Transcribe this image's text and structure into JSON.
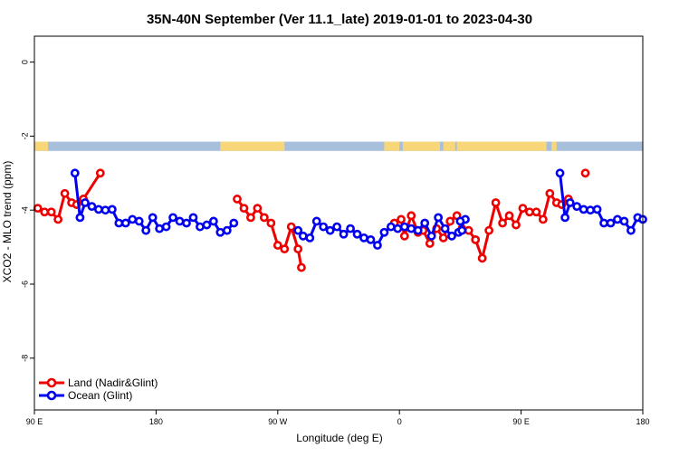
{
  "chart_data": {
    "type": "line",
    "title": "35N-40N September (Ver 11.1_late)   2019-01-01 to 2023-04-30",
    "xlabel": "Longitude (deg E)",
    "ylabel": "XCO2 - MLO trend (ppm)",
    "xlim": [
      90,
      450
    ],
    "ylim": [
      -9.4,
      0.7
    ],
    "x_ticks": [
      {
        "value": 90,
        "label": "90 E"
      },
      {
        "value": 162,
        "label": "180"
      },
      {
        "value": 234,
        "label": "90 W"
      },
      {
        "value": 306,
        "label": "0"
      },
      {
        "value": 378,
        "label": "90 E"
      },
      {
        "value": 450,
        "label": "180"
      }
    ],
    "y_ticks": [
      0,
      -2,
      -4,
      -6,
      -8
    ],
    "grid": false,
    "legend_position": "bottom-left",
    "land_strip": {
      "y_range": [
        -2.4,
        -2.15
      ],
      "ocean_color": "#a8bfdc",
      "land_color": "#f7d77a",
      "land_segms": [
        [
          90,
          98
        ],
        [
          200,
          238
        ],
        [
          297,
          306
        ],
        [
          308,
          330
        ],
        [
          332,
          339
        ],
        [
          340,
          393
        ],
        [
          396,
          399
        ]
      ]
    },
    "series": [
      {
        "name": "Land (Nadir&Glint)",
        "color": "#ee0000",
        "segments": [
          [
            [
              92,
              -3.95
            ],
            [
              96,
              -4.05
            ],
            [
              100,
              -4.05
            ],
            [
              104,
              -4.25
            ],
            [
              108,
              -3.55
            ],
            [
              112,
              -3.8
            ],
            [
              115,
              -3.85
            ],
            [
              119,
              -3.7
            ],
            [
              129,
              -3.0
            ]
          ],
          [
            [
              210,
              -3.7
            ],
            [
              214,
              -3.95
            ],
            [
              218,
              -4.2
            ],
            [
              222,
              -3.95
            ],
            [
              226,
              -4.2
            ],
            [
              230,
              -4.35
            ],
            [
              234,
              -4.95
            ],
            [
              238,
              -5.05
            ],
            [
              242,
              -4.45
            ],
            [
              246,
              -5.05
            ],
            [
              248,
              -5.55
            ]
          ],
          [
            [
              303,
              -4.35
            ],
            [
              307,
              -4.25
            ],
            [
              309,
              -4.7
            ],
            [
              313,
              -4.15
            ],
            [
              317,
              -4.6
            ],
            [
              320,
              -4.55
            ],
            [
              324,
              -4.9
            ],
            [
              328,
              -4.5
            ],
            [
              332,
              -4.75
            ],
            [
              336,
              -4.3
            ],
            [
              340,
              -4.15
            ],
            [
              343,
              -4.5
            ],
            [
              347,
              -4.55
            ],
            [
              351,
              -4.8
            ],
            [
              355,
              -5.3
            ],
            [
              359,
              -4.55
            ],
            [
              363,
              -3.8
            ],
            [
              367,
              -4.35
            ],
            [
              371,
              -4.15
            ],
            [
              375,
              -4.4
            ],
            [
              379,
              -3.95
            ],
            [
              383,
              -4.05
            ],
            [
              387,
              -4.05
            ],
            [
              391,
              -4.25
            ],
            [
              395,
              -3.55
            ],
            [
              399,
              -3.8
            ],
            [
              402,
              -3.85
            ],
            [
              406,
              -3.7
            ]
          ],
          [
            [
              416,
              -3.0
            ]
          ]
        ]
      },
      {
        "name": "Ocean (Glint)",
        "color": "#0000ee",
        "segments": [
          [
            [
              114,
              -3.0
            ],
            [
              117,
              -4.2
            ],
            [
              120,
              -3.8
            ],
            [
              124,
              -3.9
            ],
            [
              128,
              -3.98
            ],
            [
              132,
              -4.0
            ],
            [
              136,
              -3.98
            ],
            [
              140,
              -4.35
            ],
            [
              144,
              -4.35
            ],
            [
              148,
              -4.25
            ],
            [
              152,
              -4.3
            ],
            [
              156,
              -4.55
            ],
            [
              160,
              -4.2
            ],
            [
              164,
              -4.5
            ],
            [
              168,
              -4.45
            ],
            [
              172,
              -4.2
            ],
            [
              176,
              -4.3
            ],
            [
              180,
              -4.35
            ],
            [
              184,
              -4.2
            ],
            [
              188,
              -4.45
            ],
            [
              192,
              -4.4
            ],
            [
              196,
              -4.3
            ],
            [
              200,
              -4.6
            ],
            [
              204,
              -4.55
            ],
            [
              208,
              -4.35
            ]
          ],
          [
            [
              246,
              -4.55
            ],
            [
              249,
              -4.7
            ],
            [
              253,
              -4.75
            ],
            [
              257,
              -4.3
            ],
            [
              261,
              -4.45
            ],
            [
              265,
              -4.55
            ],
            [
              269,
              -4.45
            ],
            [
              273,
              -4.65
            ],
            [
              277,
              -4.5
            ],
            [
              281,
              -4.65
            ],
            [
              285,
              -4.75
            ],
            [
              289,
              -4.8
            ],
            [
              293,
              -4.95
            ],
            [
              297,
              -4.6
            ],
            [
              301,
              -4.45
            ],
            [
              305,
              -4.5
            ],
            [
              309,
              -4.45
            ],
            [
              313,
              -4.5
            ],
            [
              317,
              -4.55
            ],
            [
              321,
              -4.35
            ],
            [
              325,
              -4.7
            ],
            [
              329,
              -4.2
            ],
            [
              333,
              -4.5
            ],
            [
              337,
              -4.7
            ],
            [
              341,
              -4.6
            ],
            [
              345,
              -4.25
            ]
          ],
          [
            [
              343,
              -4.55
            ],
            [
              342,
              -4.3
            ]
          ],
          [
            [
              401,
              -3.0
            ],
            [
              404,
              -4.2
            ],
            [
              407,
              -3.8
            ],
            [
              411,
              -3.9
            ],
            [
              415,
              -3.98
            ],
            [
              419,
              -4.0
            ],
            [
              423,
              -3.98
            ],
            [
              427,
              -4.35
            ],
            [
              431,
              -4.35
            ],
            [
              435,
              -4.25
            ],
            [
              439,
              -4.3
            ],
            [
              443,
              -4.55
            ],
            [
              447,
              -4.2
            ],
            [
              450,
              -4.25
            ]
          ]
        ]
      }
    ]
  }
}
